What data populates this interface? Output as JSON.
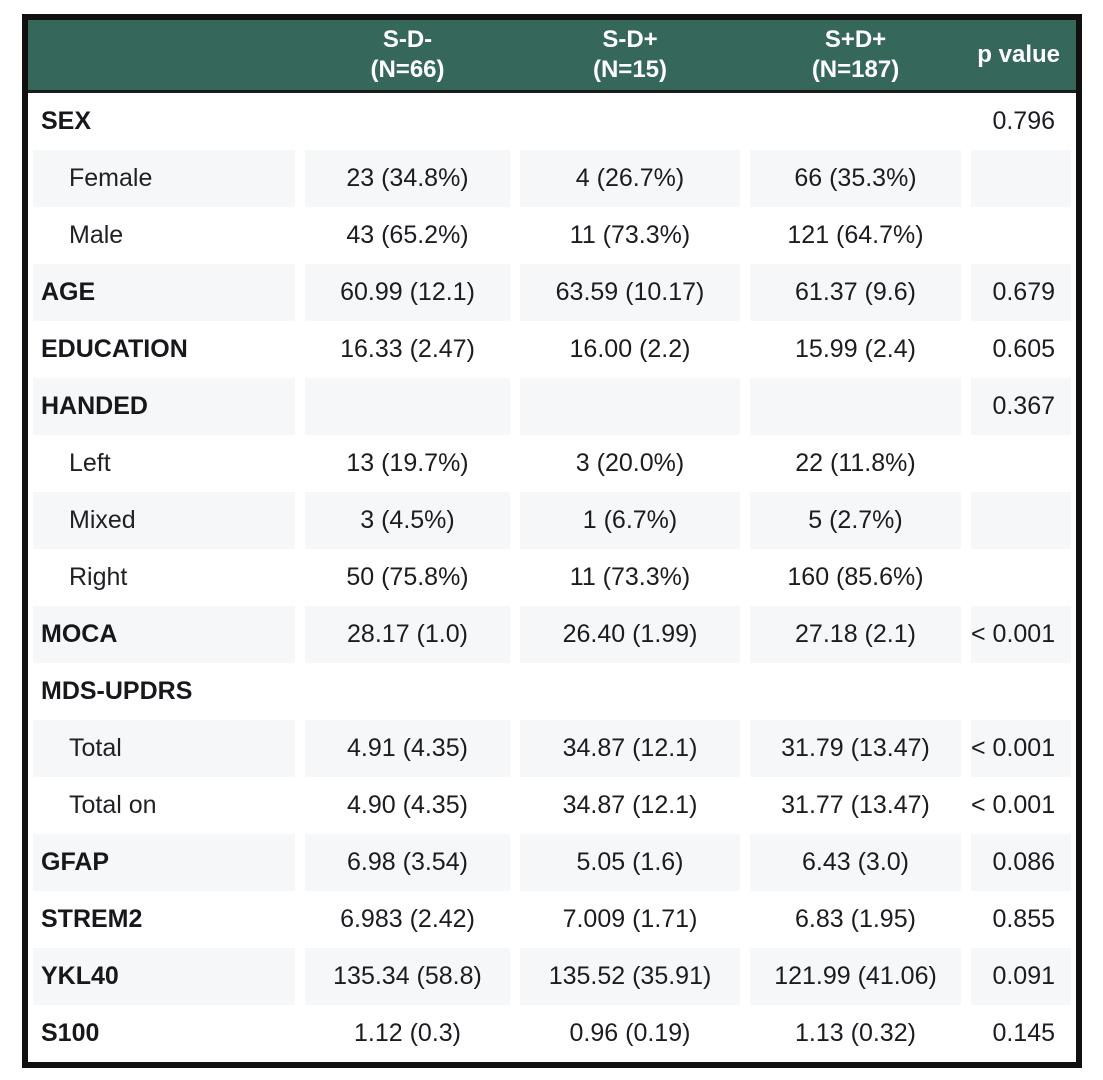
{
  "table": {
    "header": {
      "groups": [
        {
          "name": "S-D-",
          "n": "(N=66)"
        },
        {
          "name": "S-D+",
          "n": "(N=15)"
        },
        {
          "name": "S+D+",
          "n": "(N=187)"
        }
      ],
      "p_label": "p value"
    },
    "rows": [
      {
        "label": "SEX",
        "indent": false,
        "values": [
          "",
          "",
          ""
        ],
        "p": "0.796"
      },
      {
        "label": "Female",
        "indent": true,
        "values": [
          "23 (34.8%)",
          "4 (26.7%)",
          "66 (35.3%)"
        ],
        "p": ""
      },
      {
        "label": "Male",
        "indent": true,
        "values": [
          "43 (65.2%)",
          "11 (73.3%)",
          "121 (64.7%)"
        ],
        "p": ""
      },
      {
        "label": "AGE",
        "indent": false,
        "values": [
          "60.99 (12.1)",
          "63.59 (10.17)",
          "61.37 (9.6)"
        ],
        "p": "0.679"
      },
      {
        "label": "EDUCATION",
        "indent": false,
        "values": [
          "16.33 (2.47)",
          "16.00 (2.2)",
          "15.99 (2.4)"
        ],
        "p": "0.605"
      },
      {
        "label": "HANDED",
        "indent": false,
        "values": [
          "",
          "",
          ""
        ],
        "p": "0.367"
      },
      {
        "label": "Left",
        "indent": true,
        "values": [
          "13 (19.7%)",
          "3 (20.0%)",
          "22 (11.8%)"
        ],
        "p": ""
      },
      {
        "label": "Mixed",
        "indent": true,
        "values": [
          "3 (4.5%)",
          "1 (6.7%)",
          "5 (2.7%)"
        ],
        "p": ""
      },
      {
        "label": "Right",
        "indent": true,
        "values": [
          "50 (75.8%)",
          "11 (73.3%)",
          "160 (85.6%)"
        ],
        "p": ""
      },
      {
        "label": "MOCA",
        "indent": false,
        "values": [
          "28.17 (1.0)",
          "26.40 (1.99)",
          "27.18 (2.1)"
        ],
        "p": "< 0.001"
      },
      {
        "label": "MDS-UPDRS",
        "indent": false,
        "values": [
          "",
          "",
          ""
        ],
        "p": ""
      },
      {
        "label": "Total",
        "indent": true,
        "values": [
          "4.91 (4.35)",
          "34.87 (12.1)",
          "31.79 (13.47)"
        ],
        "p": "< 0.001"
      },
      {
        "label": "Total on",
        "indent": true,
        "values": [
          "4.90 (4.35)",
          "34.87 (12.1)",
          "31.77 (13.47)"
        ],
        "p": "< 0.001"
      },
      {
        "label": "GFAP",
        "indent": false,
        "values": [
          "6.98 (3.54)",
          "5.05 (1.6)",
          "6.43 (3.0)"
        ],
        "p": "0.086"
      },
      {
        "label": "STREM2",
        "indent": false,
        "values": [
          "6.983 (2.42)",
          "7.009 (1.71)",
          "6.83 (1.95)"
        ],
        "p": "0.855"
      },
      {
        "label": "YKL40",
        "indent": false,
        "values": [
          "135.34 (58.8)",
          "135.52 (35.91)",
          "121.99 (41.06)"
        ],
        "p": "0.091"
      },
      {
        "label": "S100",
        "indent": false,
        "values": [
          "1.12 (0.3)",
          "0.96 (0.19)",
          "1.13 (0.32)"
        ],
        "p": "0.145"
      }
    ],
    "colors": {
      "header_bg": "#35685A",
      "header_text": "#ffffff",
      "frame_border": "#101010",
      "stripe": "#f6f7f9",
      "body_text": "#1b1c20"
    }
  }
}
